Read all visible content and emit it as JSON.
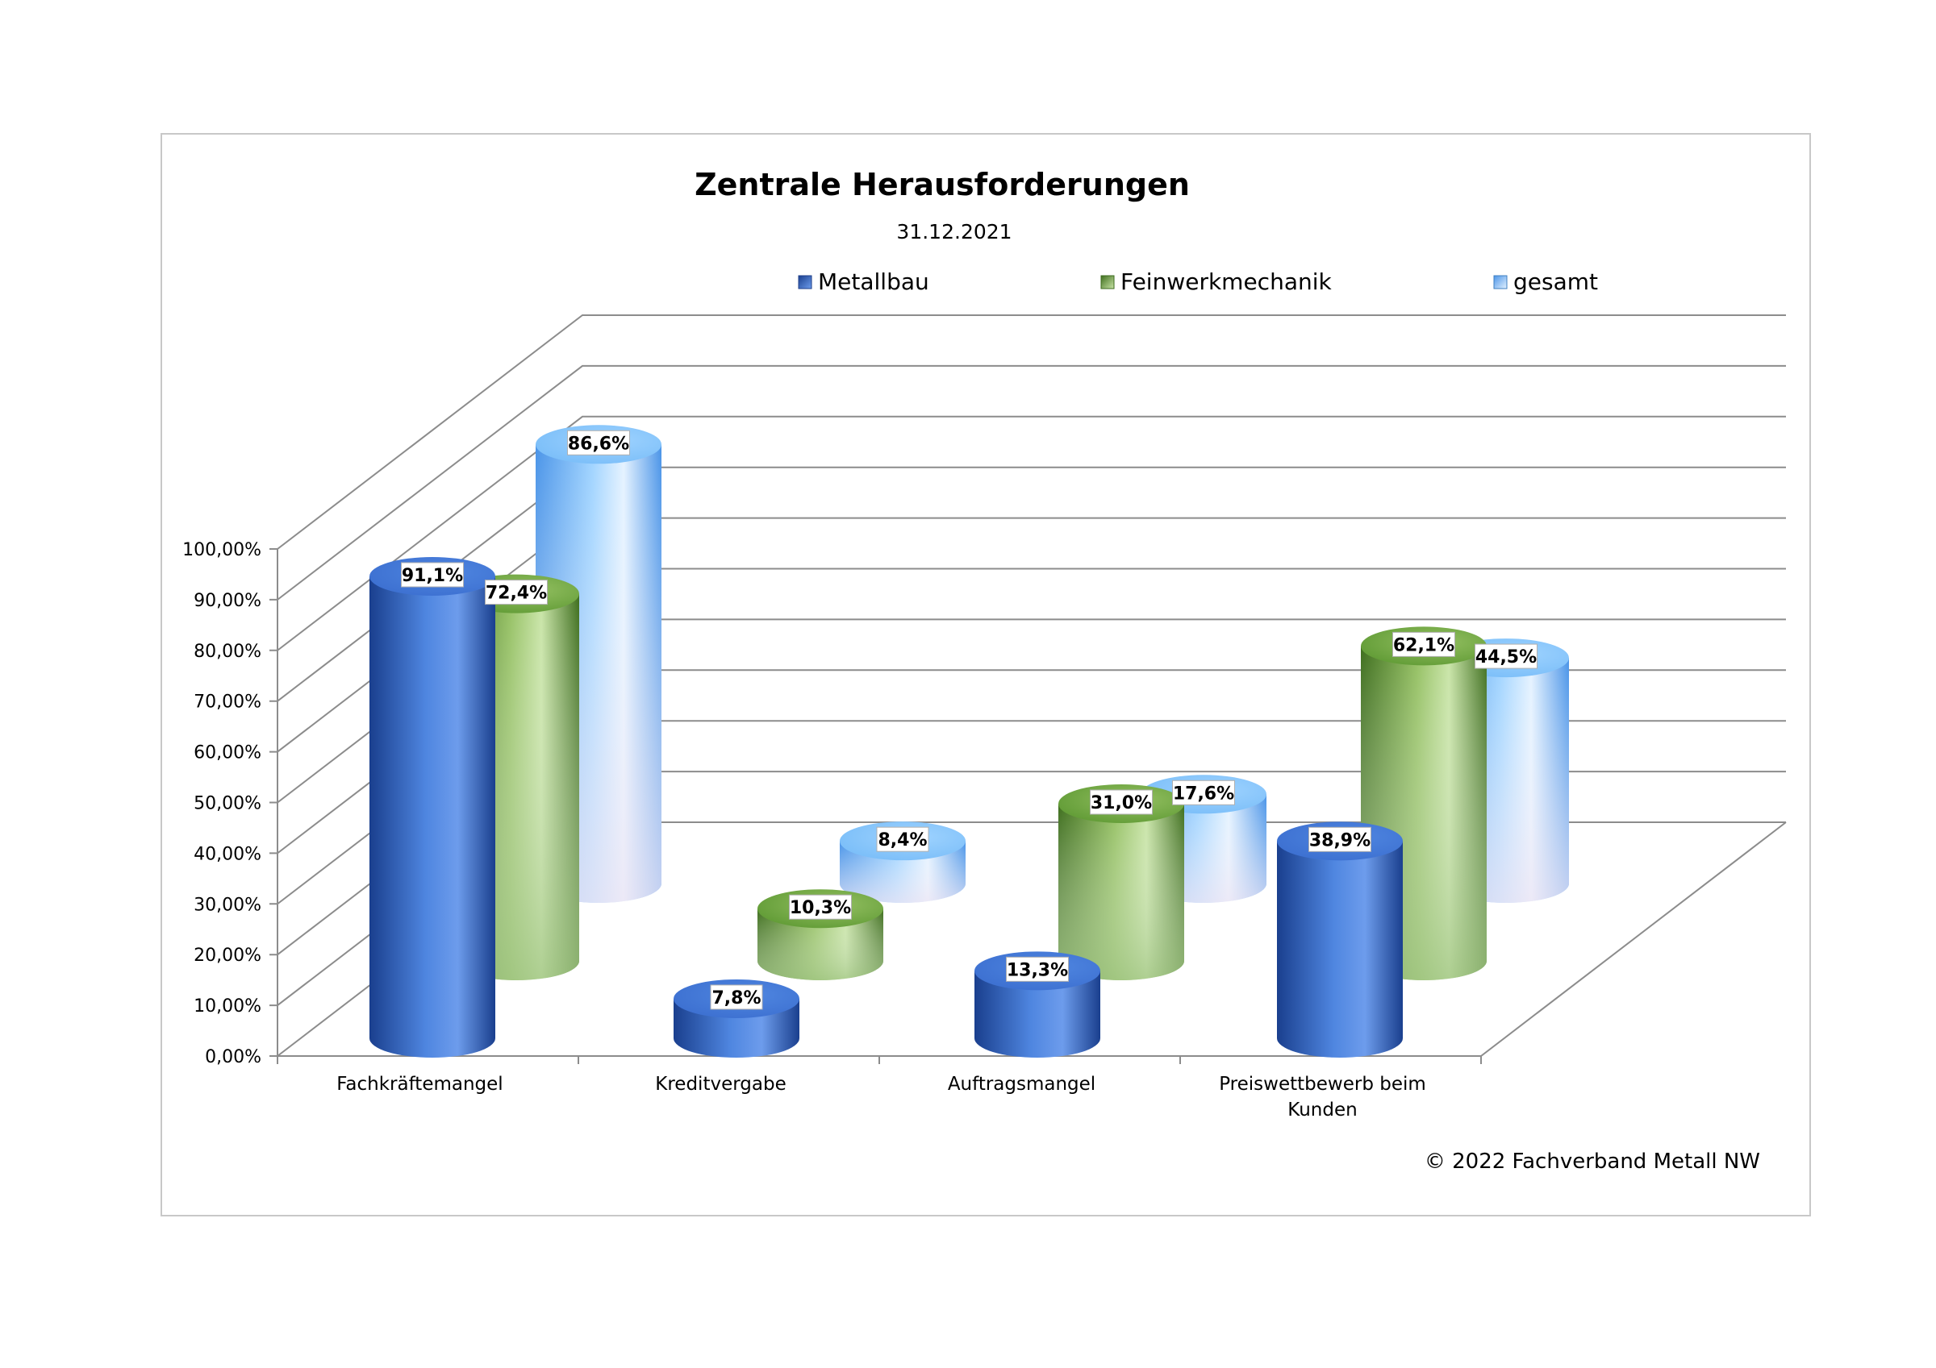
{
  "chart_data": {
    "type": "bar",
    "title": "Zentrale Herausforderungen",
    "subtitle": "31.12.2021",
    "categories": [
      "Fachkräftemangel",
      "Kreditvergabe",
      "Auftragsmangel",
      "Preiswettbewerb beim Kunden"
    ],
    "series": [
      {
        "name": "Metallbau",
        "values": [
          91.1,
          7.8,
          13.3,
          38.9
        ],
        "labels": [
          "91,1%",
          "7,8%",
          "13,3%",
          "38,9%"
        ],
        "color": "#2f5fc4"
      },
      {
        "name": "Feinwerkmechanik",
        "values": [
          72.4,
          10.3,
          31.0,
          62.1
        ],
        "labels": [
          "72,4%",
          "10,3%",
          "31,0%",
          "62,1%"
        ],
        "color": "#7aa844"
      },
      {
        "name": "gesamt",
        "values": [
          86.6,
          8.4,
          17.6,
          44.5
        ],
        "labels": [
          "86,6%",
          "8,4%",
          "17,6%",
          "44,5%"
        ],
        "color": "#6fb3f5"
      }
    ],
    "y_ticks": [
      "0,00%",
      "10,00%",
      "20,00%",
      "30,00%",
      "40,00%",
      "50,00%",
      "60,00%",
      "70,00%",
      "80,00%",
      "90,00%",
      "100,00%"
    ],
    "ylim": [
      0,
      100
    ],
    "grid": true,
    "legend_position": "top",
    "style": "3d-cylinder"
  },
  "footer": {
    "copyright": "© 2022 Fachverband Metall NW"
  }
}
